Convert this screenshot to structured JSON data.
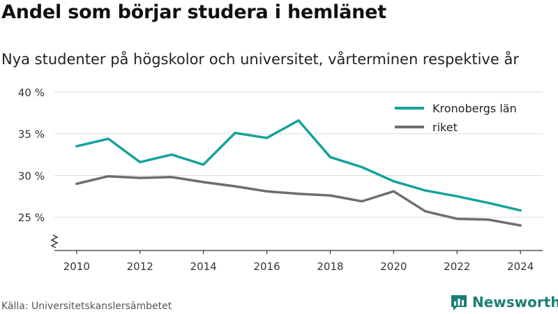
{
  "header": {
    "title": "Andel som börjar studera i hemlänet",
    "subtitle": "Nya studenter på högskolor och universitet, vårterminen respektive år"
  },
  "footer": {
    "source": "Källa: Universitetskanslersämbetet",
    "brand": "Newsworthy",
    "brand_color": "#1a7f74"
  },
  "chart_data": {
    "type": "line",
    "x": [
      2010,
      2011,
      2012,
      2013,
      2014,
      2015,
      2016,
      2017,
      2018,
      2019,
      2020,
      2021,
      2022,
      2023,
      2024
    ],
    "xticks": [
      2010,
      2012,
      2014,
      2016,
      2018,
      2020,
      2022,
      2024
    ],
    "xtick_labels": [
      "2010",
      "2012",
      "2014",
      "2016",
      "2018",
      "2020",
      "2022",
      "2024"
    ],
    "yticks": [
      25,
      30,
      35,
      40
    ],
    "ytick_labels": [
      "25 %",
      "30 %",
      "35 %",
      "40 %"
    ],
    "ylim": [
      21,
      41
    ],
    "xlim": [
      2009.3,
      2024.7
    ],
    "grid": true,
    "legend_position": "top-right",
    "axis_break": true,
    "series": [
      {
        "name": "Kronobergs län",
        "color": "#13a39a",
        "values": [
          33.5,
          34.4,
          31.6,
          32.5,
          31.3,
          35.1,
          34.5,
          36.6,
          32.2,
          31.0,
          29.3,
          28.2,
          27.5,
          26.7,
          25.8
        ]
      },
      {
        "name": "riket",
        "color": "#6e6d73",
        "values": [
          29.0,
          29.9,
          29.7,
          29.8,
          29.2,
          28.7,
          28.1,
          27.8,
          27.6,
          26.9,
          28.1,
          25.7,
          24.8,
          24.7,
          24.0
        ]
      }
    ]
  }
}
